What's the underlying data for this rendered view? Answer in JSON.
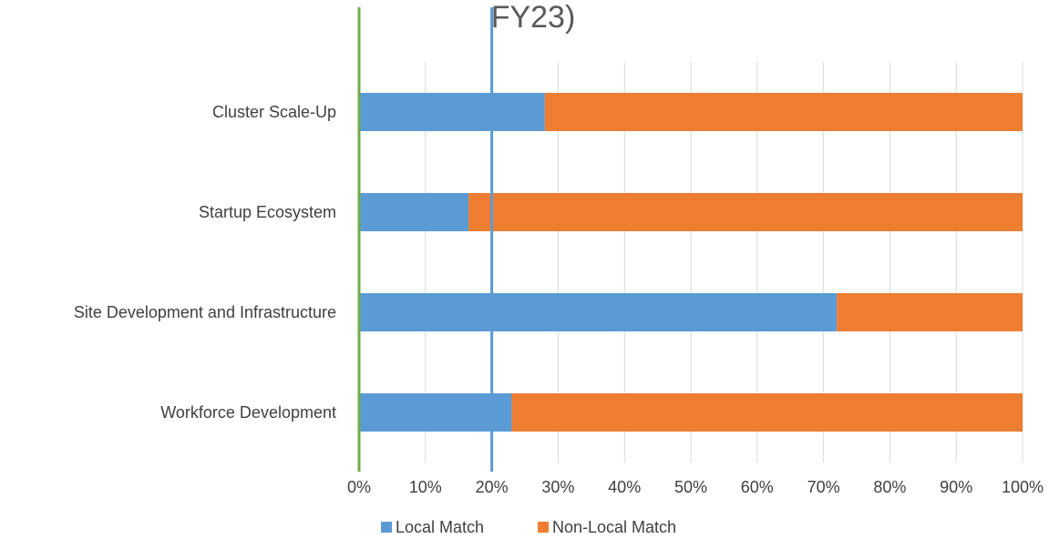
{
  "chart_data": {
    "type": "bar",
    "orientation": "horizontal",
    "stacked": true,
    "title": "FY23)",
    "categories": [
      "Cluster Scale-Up",
      "Startup Ecosystem",
      "Site Development and Infrastructure",
      "Workforce Development"
    ],
    "series": [
      {
        "name": "Local Match",
        "values": [
          28,
          16.5,
          72,
          23
        ],
        "color": "#5B9BD5"
      },
      {
        "name": "Non-Local Match",
        "values": [
          72,
          83.5,
          28,
          77
        ],
        "color": "#ED7D31"
      }
    ],
    "xlim": [
      0,
      100
    ],
    "x_ticks": [
      "0%",
      "10%",
      "20%",
      "30%",
      "40%",
      "50%",
      "60%",
      "70%",
      "80%",
      "90%",
      "100%"
    ],
    "grid": true,
    "legend_position": "bottom",
    "reference_lines": [
      {
        "value": 0,
        "color": "#70AD47"
      },
      {
        "value": 20,
        "color": "#5B9BD5"
      }
    ]
  }
}
